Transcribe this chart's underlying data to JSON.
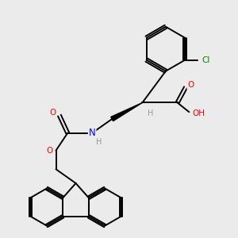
{
  "background_color": "#ebebeb",
  "bond_color": "#000000",
  "atom_colors": {
    "O": "#ff0000",
    "N": "#0000ff",
    "Cl": "#008000",
    "C": "#000000",
    "H": "#999999"
  },
  "figsize": [
    3.0,
    3.0
  ],
  "dpi": 100
}
